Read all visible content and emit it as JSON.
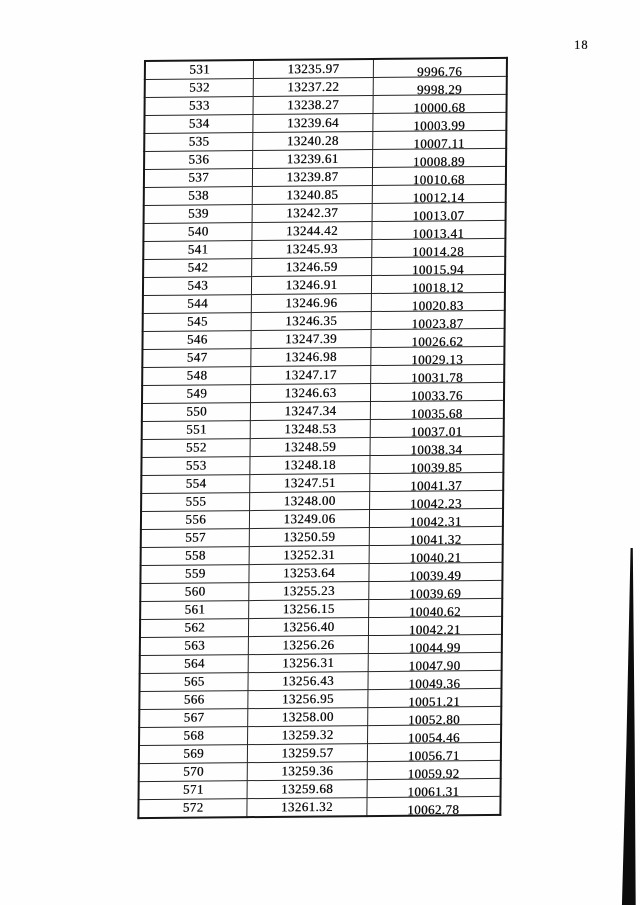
{
  "page_number": "18",
  "table": {
    "rows": [
      [
        "531",
        "13235.97",
        "9996.76"
      ],
      [
        "532",
        "13237.22",
        "9998.29"
      ],
      [
        "533",
        "13238.27",
        "10000.68"
      ],
      [
        "534",
        "13239.64",
        "10003.99"
      ],
      [
        "535",
        "13240.28",
        "10007.11"
      ],
      [
        "536",
        "13239.61",
        "10008.89"
      ],
      [
        "537",
        "13239.87",
        "10010.68"
      ],
      [
        "538",
        "13240.85",
        "10012.14"
      ],
      [
        "539",
        "13242.37",
        "10013.07"
      ],
      [
        "540",
        "13244.42",
        "10013.41"
      ],
      [
        "541",
        "13245.93",
        "10014.28"
      ],
      [
        "542",
        "13246.59",
        "10015.94"
      ],
      [
        "543",
        "13246.91",
        "10018.12"
      ],
      [
        "544",
        "13246.96",
        "10020.83"
      ],
      [
        "545",
        "13246.35",
        "10023.87"
      ],
      [
        "546",
        "13247.39",
        "10026.62"
      ],
      [
        "547",
        "13246.98",
        "10029.13"
      ],
      [
        "548",
        "13247.17",
        "10031.78"
      ],
      [
        "549",
        "13246.63",
        "10033.76"
      ],
      [
        "550",
        "13247.34",
        "10035.68"
      ],
      [
        "551",
        "13248.53",
        "10037.01"
      ],
      [
        "552",
        "13248.59",
        "10038.34"
      ],
      [
        "553",
        "13248.18",
        "10039.85"
      ],
      [
        "554",
        "13247.51",
        "10041.37"
      ],
      [
        "555",
        "13248.00",
        "10042.23"
      ],
      [
        "556",
        "13249.06",
        "10042.31"
      ],
      [
        "557",
        "13250.59",
        "10041.32"
      ],
      [
        "558",
        "13252.31",
        "10040.21"
      ],
      [
        "559",
        "13253.64",
        "10039.49"
      ],
      [
        "560",
        "13255.23",
        "10039.69"
      ],
      [
        "561",
        "13256.15",
        "10040.62"
      ],
      [
        "562",
        "13256.40",
        "10042.21"
      ],
      [
        "563",
        "13256.26",
        "10044.99"
      ],
      [
        "564",
        "13256.31",
        "10047.90"
      ],
      [
        "565",
        "13256.43",
        "10049.36"
      ],
      [
        "566",
        "13256.95",
        "10051.21"
      ],
      [
        "567",
        "13258.00",
        "10052.80"
      ],
      [
        "568",
        "13259.32",
        "10054.46"
      ],
      [
        "569",
        "13259.57",
        "10056.71"
      ],
      [
        "570",
        "13259.36",
        "10059.92"
      ],
      [
        "571",
        "13259.68",
        "10061.31"
      ],
      [
        "572",
        "13261.32",
        "10062.78"
      ]
    ]
  }
}
